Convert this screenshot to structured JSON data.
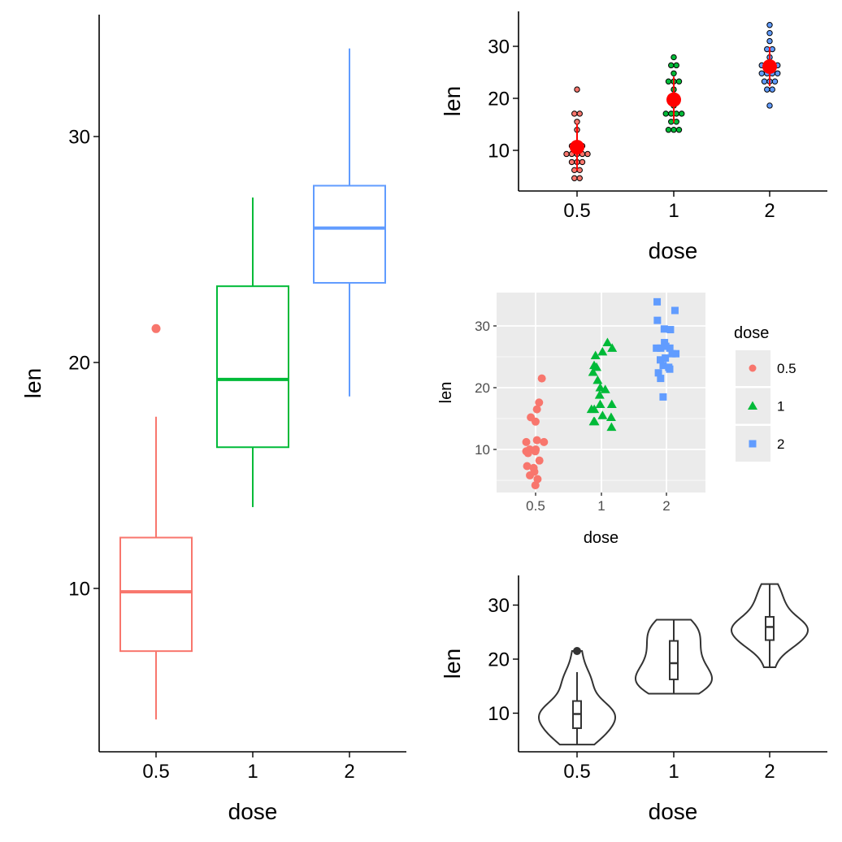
{
  "colors": {
    "0.5": "#F8766D",
    "1": "#00BA38",
    "2": "#619CFF",
    "mean": "#FF0000",
    "panel": "#EBEBEB"
  },
  "raw_data": {
    "0.5": [
      4.2,
      11.5,
      7.3,
      5.8,
      6.4,
      10,
      11.2,
      11.2,
      5.2,
      7,
      15.2,
      21.5,
      17.6,
      9.7,
      14.5,
      10,
      8.2,
      9.4,
      16.5,
      9.7
    ],
    "1": [
      16.5,
      16.5,
      15.2,
      17.3,
      22.5,
      17.3,
      13.6,
      14.5,
      18.8,
      15.5,
      19.7,
      23.3,
      23.6,
      26.4,
      20,
      25.2,
      25.8,
      21.2,
      14.5,
      27.3
    ],
    "2": [
      23.6,
      18.5,
      33.9,
      25.5,
      26.4,
      32.5,
      26.7,
      21.5,
      23.3,
      29.5,
      25.5,
      26.4,
      22.4,
      24.5,
      24.8,
      30.9,
      26.4,
      27.3,
      29.4,
      23
    ]
  },
  "chart_data": [
    {
      "type": "box",
      "xlabel": "dose",
      "ylabel": "len",
      "categories": [
        "0.5",
        "1",
        "2"
      ],
      "yticks": [
        10,
        20,
        30
      ],
      "boxes": [
        {
          "dose": "0.5",
          "min": 4.2,
          "q1": 7.225,
          "median": 9.85,
          "q3": 12.25,
          "max": 17.6,
          "outliers": [
            21.5
          ]
        },
        {
          "dose": "1",
          "min": 13.6,
          "q1": 16.25,
          "median": 19.25,
          "q3": 23.375,
          "max": 27.3,
          "outliers": []
        },
        {
          "dose": "2",
          "min": 18.5,
          "q1": 23.525,
          "median": 25.95,
          "q3": 27.825,
          "max": 33.9,
          "outliers": []
        }
      ]
    },
    {
      "type": "dotplot",
      "xlabel": "dose",
      "ylabel": "len",
      "categories": [
        "0.5",
        "1",
        "2"
      ],
      "yticks": [
        10,
        20,
        30
      ],
      "summary": [
        {
          "dose": "0.5",
          "mean": 10.61,
          "sd": 4.5
        },
        {
          "dose": "1",
          "mean": 19.74,
          "sd": 4.42
        },
        {
          "dose": "2",
          "mean": 26.1,
          "sd": 3.77
        }
      ]
    },
    {
      "type": "scatter",
      "xlabel": "dose",
      "ylabel": "len",
      "categories": [
        "0.5",
        "1",
        "2"
      ],
      "yticks": [
        10,
        20,
        30
      ],
      "grid": true,
      "legend": {
        "title": "dose",
        "position": "right",
        "entries": [
          {
            "label": "0.5",
            "shape": "circle"
          },
          {
            "label": "1",
            "shape": "triangle"
          },
          {
            "label": "2",
            "shape": "square"
          }
        ]
      }
    },
    {
      "type": "violin",
      "xlabel": "dose",
      "ylabel": "len",
      "categories": [
        "0.5",
        "1",
        "2"
      ],
      "yticks": [
        10,
        20,
        30
      ]
    }
  ]
}
